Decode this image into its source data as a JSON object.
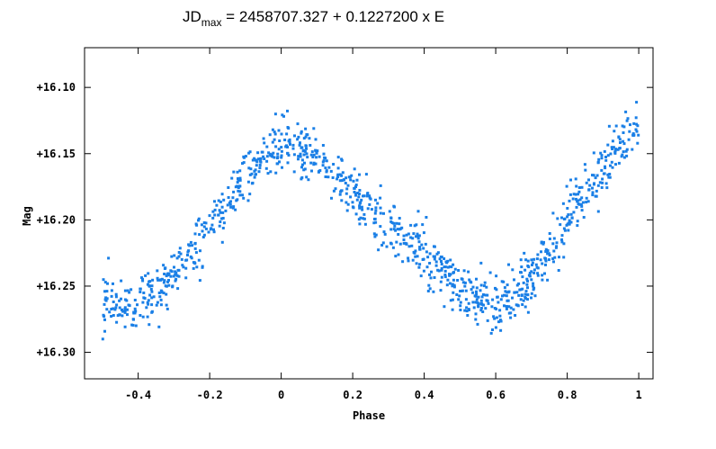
{
  "chart_data": {
    "type": "scatter",
    "title": {
      "prefix": "JD",
      "subscript": "max",
      "rest": " = 2458707.327 + 0.1227200 x E"
    },
    "xlabel": "Phase",
    "ylabel": "Mag",
    "xlim": [
      -0.55,
      1.04
    ],
    "ylim": [
      16.32,
      16.07
    ],
    "y_inverted": true,
    "x_ticks": [
      -0.4,
      -0.2,
      0,
      0.2,
      0.4,
      0.6,
      0.8,
      1
    ],
    "x_tick_labels": [
      "-0.4",
      "-0.2",
      "0",
      "0.2",
      "0.4",
      "0.6",
      "0.8",
      "1"
    ],
    "y_ticks": [
      16.1,
      16.15,
      16.2,
      16.25,
      16.3
    ],
    "y_tick_labels": [
      "+16.10",
      "+16.15",
      "+16.20",
      "+16.25",
      "+16.30"
    ],
    "grid": false,
    "marker_color": "#1a7fe6",
    "light_curve": {
      "phase": [
        -0.5,
        -0.4,
        -0.3,
        -0.2,
        -0.1,
        0.0,
        0.1,
        0.2,
        0.3,
        0.4,
        0.5,
        0.6,
        0.7,
        0.8,
        0.9,
        1.0
      ],
      "mean_mag": [
        16.263,
        16.265,
        16.24,
        16.205,
        16.165,
        16.14,
        16.15,
        16.18,
        16.205,
        16.225,
        16.255,
        16.265,
        16.245,
        16.2,
        16.16,
        16.13
      ],
      "scatter": 0.018,
      "x_range": [
        -0.5,
        1.0
      ],
      "point_count": 1100
    }
  }
}
